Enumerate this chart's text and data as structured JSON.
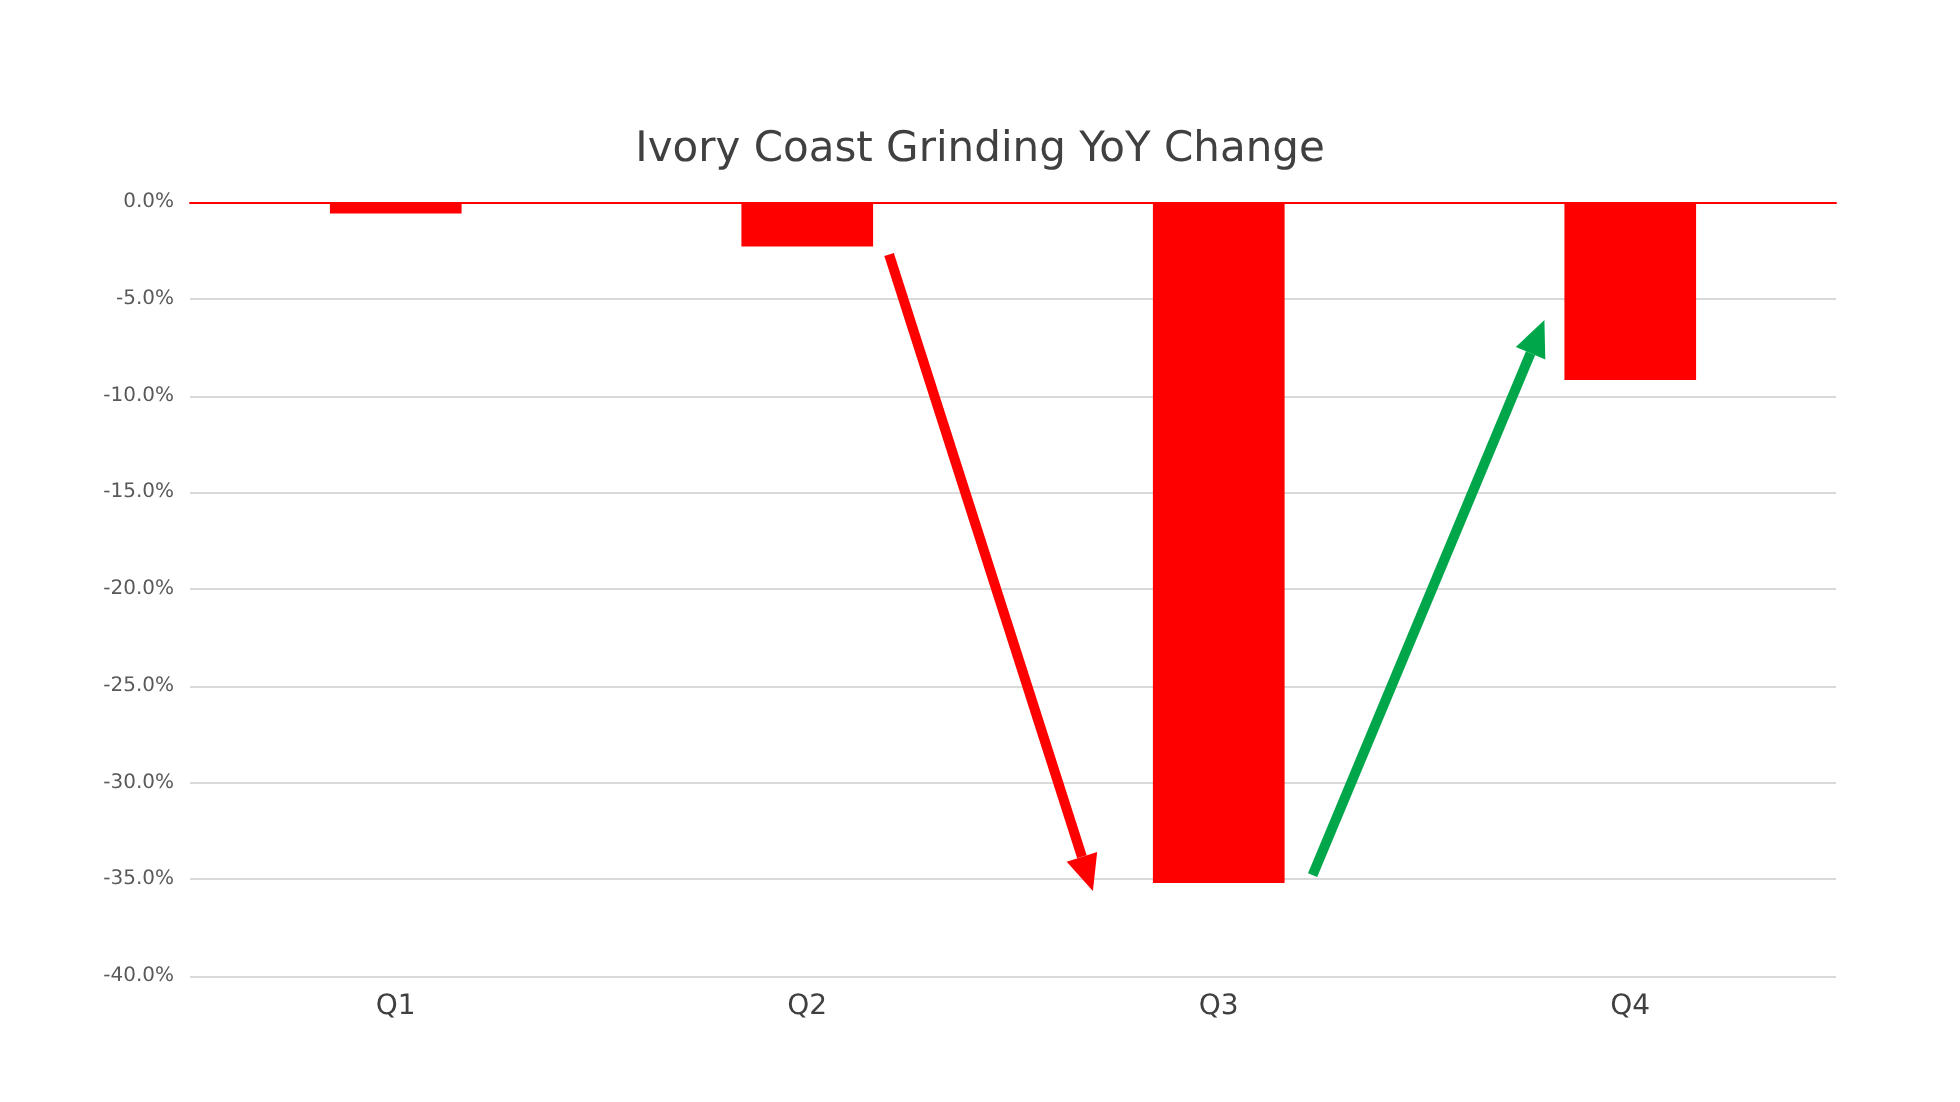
{
  "chart_data": {
    "type": "bar",
    "title": "Ivory Coast Grinding YoY Change",
    "categories": [
      "Q1",
      "Q2",
      "Q3",
      "Q4"
    ],
    "values": [
      -0.6,
      -2.3,
      -35.2,
      -9.2
    ],
    "color": "#ff0000",
    "ylim": [
      -40,
      0
    ],
    "yticks": [
      {
        "value": -40,
        "label": "-40.0%"
      },
      {
        "value": -35,
        "label": "-35.0%"
      },
      {
        "value": -30,
        "label": "-30.0%"
      },
      {
        "value": -25,
        "label": "-25.0%"
      },
      {
        "value": -20,
        "label": "-20.0%"
      },
      {
        "value": -15,
        "label": "-15.0%"
      },
      {
        "value": -10,
        "label": "-10.0%"
      },
      {
        "value": -5,
        "label": "-5.0%"
      },
      {
        "value": 0,
        "label": "0.0%"
      }
    ],
    "grid": "y"
  }
}
